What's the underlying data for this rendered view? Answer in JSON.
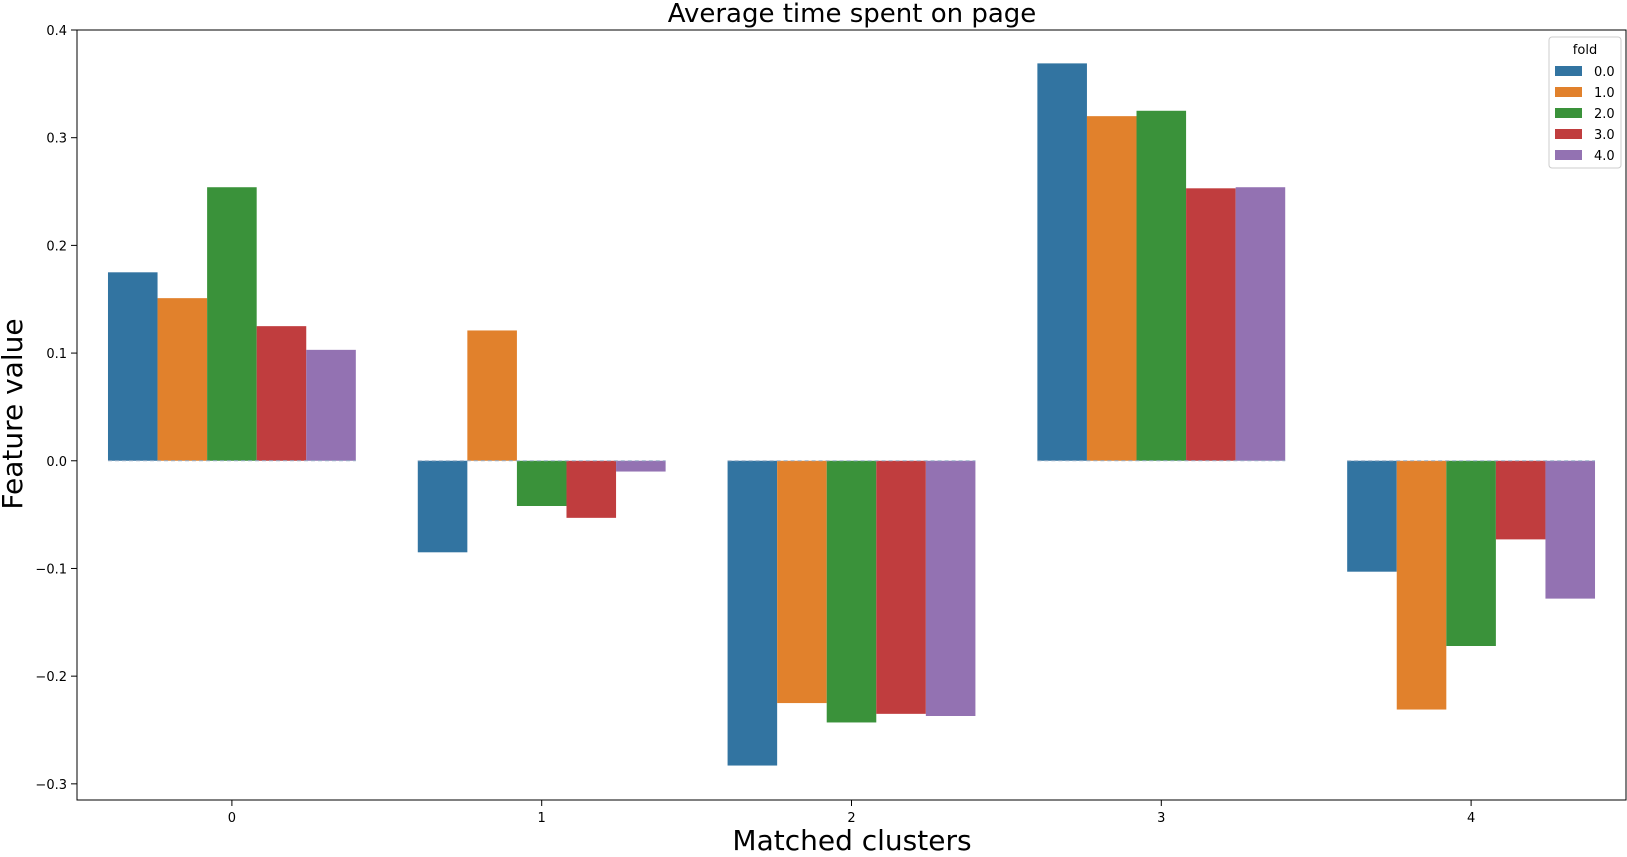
{
  "chart_data": {
    "type": "bar",
    "title": "Average time spent on page",
    "xlabel": "Matched clusters",
    "ylabel": "Feature value",
    "categories": [
      "0",
      "1",
      "2",
      "3",
      "4"
    ],
    "ylim": [
      -0.315,
      0.4
    ],
    "yticks": [
      -0.3,
      -0.2,
      -0.1,
      0.0,
      0.1,
      0.2,
      0.3,
      0.4
    ],
    "ytick_labels": [
      "−0.3",
      "−0.2",
      "−0.1",
      "0.0",
      "0.1",
      "0.2",
      "0.3",
      "0.4"
    ],
    "grid": false,
    "legend": {
      "title": "fold",
      "placement": "top-right"
    },
    "series": [
      {
        "name": "0.0",
        "color": "#3274a1",
        "values": [
          0.175,
          -0.085,
          -0.283,
          0.369,
          -0.103
        ]
      },
      {
        "name": "1.0",
        "color": "#e1812c",
        "values": [
          0.151,
          0.121,
          -0.225,
          0.32,
          -0.231
        ]
      },
      {
        "name": "2.0",
        "color": "#3a923a",
        "values": [
          0.254,
          -0.042,
          -0.243,
          0.325,
          -0.172
        ]
      },
      {
        "name": "3.0",
        "color": "#c03d3e",
        "values": [
          0.125,
          -0.053,
          -0.235,
          0.253,
          -0.073
        ]
      },
      {
        "name": "4.0",
        "color": "#9372b2",
        "values": [
          0.103,
          -0.01,
          -0.237,
          0.254,
          -0.128
        ]
      }
    ]
  }
}
